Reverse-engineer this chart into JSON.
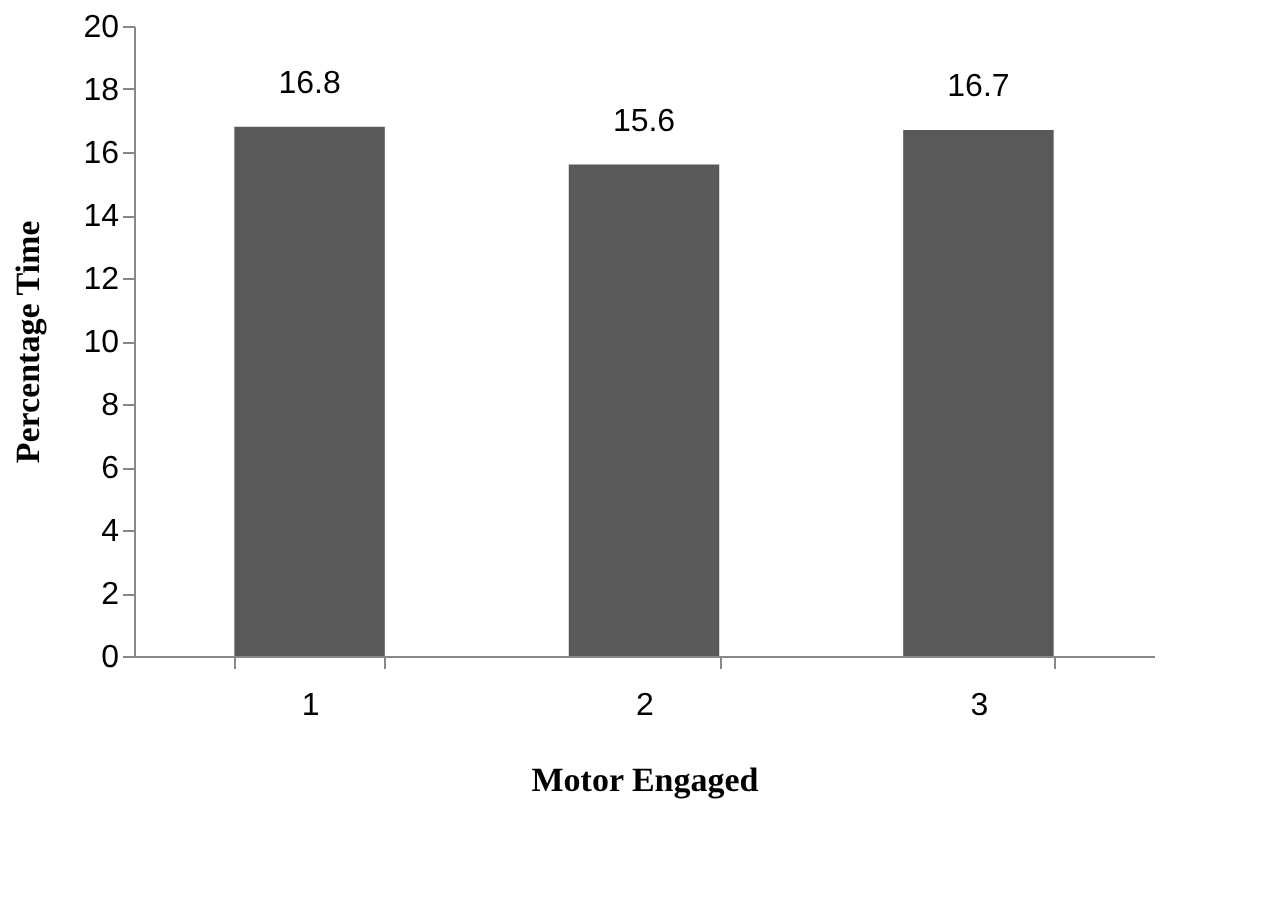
{
  "chart_data": {
    "type": "bar",
    "xlabel": "Motor Engaged",
    "ylabel": "Percentage Time",
    "categories": [
      "1",
      "2",
      "3"
    ],
    "values": [
      16.8,
      15.6,
      16.7
    ],
    "color": "#595959",
    "ylim": [
      0,
      20
    ],
    "yticks": [
      0,
      2,
      4,
      6,
      8,
      10,
      12,
      14,
      16,
      18,
      20
    ],
    "data_labels": true,
    "grid": false
  }
}
